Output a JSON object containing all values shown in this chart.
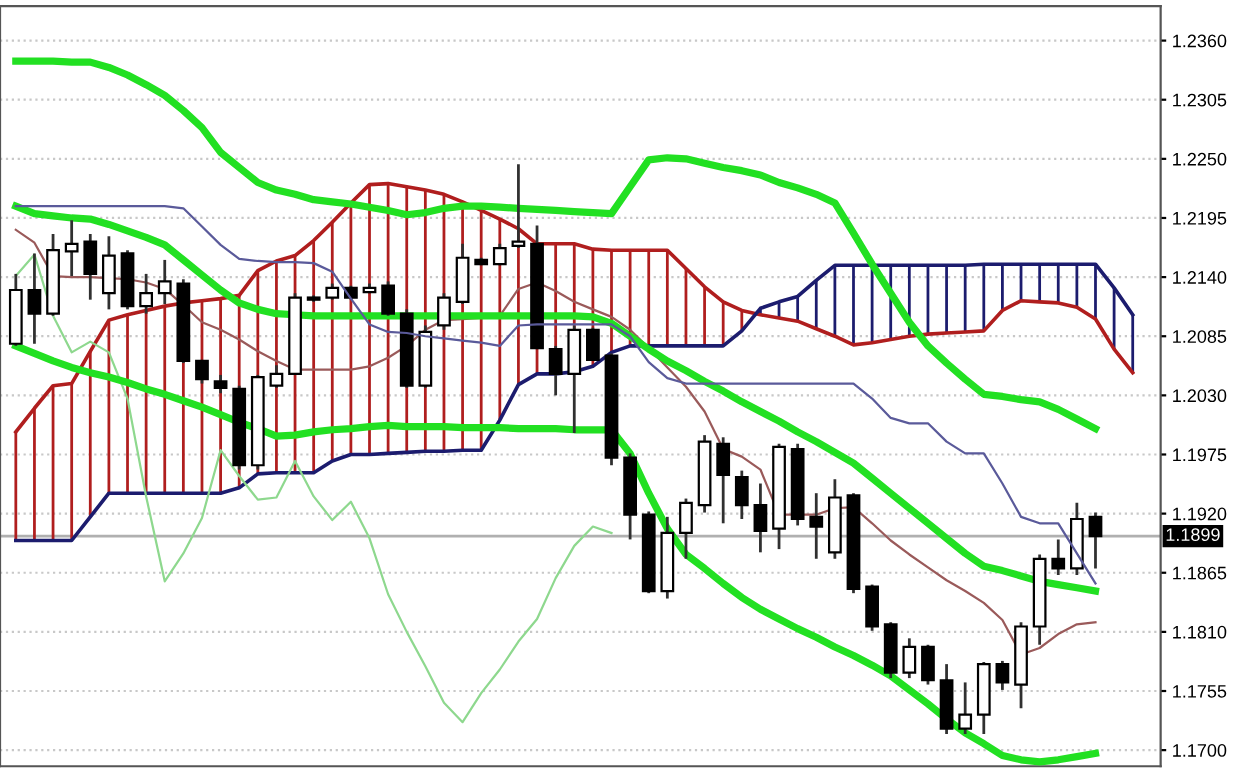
{
  "chart_data": {
    "type": "candlestick",
    "categories": [
      null,
      null,
      null,
      null,
      null,
      null,
      null,
      null,
      null,
      null,
      null,
      null,
      null,
      null,
      null,
      null,
      null,
      null,
      null,
      null,
      null,
      null,
      null,
      null,
      null,
      null,
      null,
      null,
      null,
      null,
      null,
      null,
      null,
      null,
      null,
      null,
      null,
      null,
      null,
      null,
      null,
      null,
      null,
      null,
      null,
      null,
      null,
      null,
      null,
      null,
      null,
      null,
      null,
      null,
      null,
      null,
      null,
      null,
      null,
      null,
      null,
      null
    ],
    "ohlc": [
      [
        1.2078,
        1.2143,
        1.2076,
        1.2128
      ],
      [
        1.2128,
        1.2162,
        1.2078,
        1.2106
      ],
      [
        1.2106,
        1.218,
        1.2104,
        1.2165
      ],
      [
        1.2164,
        1.2193,
        1.2141,
        1.2171
      ],
      [
        1.2173,
        1.218,
        1.2119,
        1.2143
      ],
      [
        1.2125,
        1.2178,
        1.211,
        1.216
      ],
      [
        1.2162,
        1.2165,
        1.211,
        1.2113
      ],
      [
        1.2113,
        1.2143,
        1.2106,
        1.2125
      ],
      [
        1.2125,
        1.2156,
        1.2115,
        1.2136
      ],
      [
        1.2134,
        1.2138,
        1.206,
        1.2062
      ],
      [
        1.2062,
        1.2063,
        1.2041,
        1.2045
      ],
      [
        1.2043,
        1.2049,
        1.2032,
        1.2037
      ],
      [
        1.2036,
        1.2039,
        1.1961,
        1.1965
      ],
      [
        1.1965,
        1.2049,
        1.1961,
        1.2047
      ],
      [
        1.2039,
        1.2058,
        1.2037,
        1.205
      ],
      [
        1.205,
        1.2125,
        1.2049,
        1.2121
      ],
      [
        1.2121,
        1.2123,
        1.2117,
        1.2119
      ],
      [
        1.2121,
        1.2134,
        1.2119,
        1.213
      ],
      [
        1.213,
        1.2132,
        1.2119,
        1.2121
      ],
      [
        1.2126,
        1.2134,
        1.2125,
        1.213
      ],
      [
        1.2132,
        1.2136,
        1.2104,
        1.2106
      ],
      [
        1.2106,
        1.211,
        1.2037,
        1.2039
      ],
      [
        1.2039,
        1.2095,
        1.2037,
        1.2089
      ],
      [
        1.2095,
        1.2125,
        1.2091,
        1.2121
      ],
      [
        1.2117,
        1.2171,
        1.2115,
        1.2158
      ],
      [
        1.2156,
        1.2158,
        1.2151,
        1.2152
      ],
      [
        1.2152,
        1.2171,
        1.2151,
        1.2167
      ],
      [
        1.2169,
        1.2245,
        1.2167,
        1.2173
      ],
      [
        1.2171,
        1.2188,
        1.2073,
        1.2074
      ],
      [
        1.2073,
        1.2076,
        1.203,
        1.205
      ],
      [
        1.205,
        1.2095,
        1.1995,
        1.2091
      ],
      [
        1.2091,
        1.2093,
        1.2062,
        1.2063
      ],
      [
        1.2067,
        1.2069,
        1.1965,
        1.1972
      ],
      [
        1.1972,
        1.1976,
        1.1896,
        1.1919
      ],
      [
        1.1919,
        1.1922,
        1.1846,
        1.1848
      ],
      [
        1.1848,
        1.1917,
        1.1841,
        1.1902
      ],
      [
        1.1902,
        1.1934,
        1.1878,
        1.193
      ],
      [
        1.1928,
        1.1993,
        1.1921,
        1.1987
      ],
      [
        1.1985,
        1.1991,
        1.1911,
        1.1956
      ],
      [
        1.1954,
        1.196,
        1.1915,
        1.1928
      ],
      [
        1.1928,
        1.1948,
        1.1884,
        1.1904
      ],
      [
        1.1906,
        1.1985,
        1.1887,
        1.1982
      ],
      [
        1.198,
        1.1985,
        1.1909,
        1.1915
      ],
      [
        1.1917,
        1.1939,
        1.1878,
        1.1908
      ],
      [
        1.1884,
        1.1952,
        1.1878,
        1.1935
      ],
      [
        1.1937,
        1.1939,
        1.1846,
        1.185
      ],
      [
        1.1852,
        1.1854,
        1.1811,
        1.1815
      ],
      [
        1.1817,
        1.1819,
        1.1767,
        1.1772
      ],
      [
        1.1772,
        1.1804,
        1.1767,
        1.1796
      ],
      [
        1.1796,
        1.1798,
        1.1761,
        1.1765
      ],
      [
        1.1765,
        1.178,
        1.1715,
        1.172
      ],
      [
        1.172,
        1.1763,
        1.1715,
        1.1733
      ],
      [
        1.1733,
        1.1782,
        1.1715,
        1.178
      ],
      [
        1.178,
        1.1783,
        1.1756,
        1.1763
      ],
      [
        1.1761,
        1.1819,
        1.1739,
        1.1815
      ],
      [
        1.1815,
        1.1882,
        1.1798,
        1.1878
      ],
      [
        1.1878,
        1.1896,
        1.1863,
        1.1869
      ],
      [
        1.1869,
        1.193,
        1.1863,
        1.1915
      ],
      [
        1.1917,
        1.1921,
        1.1869,
        1.1899
      ],
      null,
      null,
      null
    ],
    "series": [
      {
        "type": "line",
        "color": "#22e022",
        "values": [
          1.2341,
          1.2341,
          1.2341,
          1.234,
          1.234,
          1.2335,
          1.2328,
          1.2319,
          1.2309,
          1.2295,
          1.2279,
          1.2256,
          1.2242,
          1.2228,
          1.2221,
          1.2217,
          1.2212,
          1.221,
          1.2208,
          1.2205,
          1.2202,
          1.2198,
          1.22,
          1.2204,
          1.2206,
          1.2206,
          1.2205,
          1.2204,
          1.2203,
          1.2202,
          1.2201,
          1.22,
          1.2199,
          1.2224,
          1.2249,
          1.2251,
          1.225,
          1.2246,
          1.2242,
          1.2239,
          1.2235,
          1.2228,
          1.2223,
          1.2217,
          1.2209,
          1.2181,
          1.2152,
          1.2125,
          1.2098,
          1.2076,
          1.206,
          1.2045,
          1.2031,
          1.2029,
          1.2026,
          1.2024,
          1.2017,
          1.2008,
          1.1999,
          null,
          null,
          null
        ]
      },
      {
        "type": "line",
        "color": "#22e022",
        "values": [
          1.2206,
          1.2199,
          1.2197,
          1.2195,
          1.2194,
          1.2189,
          1.2183,
          1.2177,
          1.217,
          1.2156,
          1.2142,
          1.2128,
          1.2116,
          1.211,
          1.2106,
          1.2105,
          1.2104,
          1.2104,
          1.2104,
          1.2104,
          1.2104,
          1.2104,
          1.2104,
          1.2104,
          1.2104,
          1.2104,
          1.2104,
          1.2104,
          1.2104,
          1.2104,
          1.2104,
          1.2103,
          1.2097,
          1.2085,
          1.2073,
          1.2062,
          1.2053,
          1.2043,
          1.2034,
          1.2024,
          1.2015,
          1.2006,
          1.1996,
          1.1987,
          1.1977,
          1.1967,
          1.1953,
          1.1939,
          1.1925,
          1.1911,
          1.1897,
          1.1883,
          1.1871,
          1.1867,
          1.1862,
          1.1857,
          1.1854,
          1.1851,
          1.1848,
          null,
          null,
          null
        ]
      },
      {
        "type": "line",
        "color": "#22e022",
        "values": [
          1.2076,
          1.2069,
          1.2062,
          1.2056,
          1.2051,
          1.2047,
          1.2042,
          1.2036,
          1.2031,
          1.2025,
          1.2019,
          1.2012,
          1.2005,
          1.1999,
          1.1992,
          1.1993,
          1.1996,
          1.1998,
          1.1999,
          1.2001,
          1.2002,
          1.2001,
          1.2001,
          1.2001,
          1.2,
          1.2,
          1.2,
          1.1999,
          1.1999,
          1.1999,
          1.1998,
          1.1998,
          1.1998,
          1.1976,
          1.1939,
          1.1906,
          1.1882,
          1.1869,
          1.1855,
          1.1842,
          1.1831,
          1.1822,
          1.1813,
          1.1805,
          1.1796,
          1.1788,
          1.1779,
          1.1769,
          1.1756,
          1.1743,
          1.1729,
          1.1716,
          1.1706,
          1.1695,
          1.1691,
          1.1689,
          1.1691,
          1.1694,
          1.1697,
          null,
          null,
          null
        ]
      },
      {
        "type": "line",
        "color": "#b01e1e",
        "values": [
          1.1996,
          1.2018,
          1.2039,
          1.2041,
          1.2071,
          1.21,
          1.2105,
          1.2109,
          1.2113,
          1.2116,
          1.2118,
          1.212,
          1.2123,
          1.2146,
          1.2155,
          1.216,
          1.2174,
          1.2191,
          1.2209,
          1.2226,
          1.2227,
          1.2224,
          1.2221,
          1.2217,
          1.221,
          1.2202,
          1.2194,
          1.2185,
          1.2171,
          1.2171,
          1.2171,
          1.2166,
          1.2165,
          1.2165,
          1.2165,
          1.2165,
          1.2148,
          1.2131,
          1.2117,
          1.2109,
          1.2105,
          1.2102,
          1.2099,
          1.2092,
          1.2085,
          1.2077,
          1.2079,
          1.2082,
          1.2085,
          1.2087,
          1.2088,
          1.2089,
          1.209,
          1.2109,
          1.2118,
          1.2117,
          1.2116,
          1.2112,
          1.2101,
          1.2073,
          1.2051,
          null
        ]
      },
      {
        "type": "line",
        "color": "#1c1c6e",
        "values": [
          1.1895,
          1.1895,
          1.1895,
          1.1895,
          1.1917,
          1.1939,
          1.1939,
          1.1939,
          1.1939,
          1.1939,
          1.1939,
          1.1939,
          1.1944,
          1.1957,
          1.1958,
          1.1958,
          1.1958,
          1.1969,
          1.1975,
          1.1975,
          1.1976,
          1.1977,
          1.1978,
          1.1978,
          1.1979,
          1.1979,
          1.2007,
          1.204,
          1.205,
          1.205,
          1.2052,
          1.2057,
          1.207,
          1.2076,
          1.2076,
          1.2076,
          1.2076,
          1.2076,
          1.2076,
          1.209,
          1.2111,
          1.2117,
          1.2122,
          1.2137,
          1.2151,
          1.2151,
          1.2151,
          1.2151,
          1.2151,
          1.2151,
          1.2151,
          1.2151,
          1.2152,
          1.2152,
          1.2152,
          1.2152,
          1.2152,
          1.2152,
          1.2152,
          1.213,
          1.2105,
          null
        ]
      },
      {
        "type": "line",
        "color": "#5a5a9a",
        "values": [
          1.2206,
          1.2206,
          1.2206,
          1.2206,
          1.2206,
          1.2206,
          1.2206,
          1.2206,
          1.2206,
          1.2204,
          1.2187,
          1.217,
          1.2157,
          1.2155,
          1.2154,
          1.2154,
          1.2153,
          1.2145,
          1.212,
          1.2096,
          1.2089,
          1.2088,
          1.2085,
          1.2083,
          1.2081,
          1.2079,
          1.2076,
          1.2095,
          1.2096,
          1.2096,
          1.2096,
          1.2096,
          1.2096,
          1.2085,
          1.2061,
          1.2046,
          1.2041,
          1.2041,
          1.2041,
          1.2041,
          1.2041,
          1.2041,
          1.2041,
          1.2041,
          1.2041,
          1.2041,
          1.2027,
          1.2009,
          1.2004,
          1.2004,
          1.1987,
          1.1976,
          1.1976,
          1.1948,
          1.1917,
          1.1911,
          1.1911,
          1.1883,
          1.1855,
          null,
          null,
          null
        ]
      },
      {
        "type": "line",
        "color": "#9a5a5a",
        "values": [
          1.2184,
          1.2172,
          1.2141,
          1.214,
          1.214,
          1.2139,
          1.2138,
          1.2135,
          1.2129,
          1.2114,
          1.2098,
          1.2091,
          1.2082,
          1.2071,
          1.2062,
          1.2054,
          1.2054,
          1.2054,
          1.2054,
          1.2057,
          1.2065,
          1.2076,
          1.2091,
          1.21,
          1.2101,
          1.2102,
          1.2104,
          1.2129,
          1.2135,
          1.2127,
          1.2117,
          1.211,
          1.2103,
          1.2091,
          1.2074,
          1.2056,
          1.2038,
          1.2015,
          1.198,
          1.1973,
          1.1961,
          1.1919,
          1.1919,
          1.1919,
          1.1925,
          1.1926,
          1.1911,
          1.1895,
          1.1882,
          1.187,
          1.1858,
          1.1848,
          1.1837,
          1.1821,
          1.1789,
          1.1795,
          1.1808,
          1.1817,
          1.1819,
          null,
          null,
          null
        ]
      },
      {
        "type": "line",
        "color": "#8ed88e",
        "values": [
          1.2141,
          1.2161,
          1.2104,
          1.207,
          1.208,
          1.207,
          1.2027,
          1.1936,
          1.1857,
          1.1883,
          1.1916,
          1.1979,
          1.1955,
          1.1933,
          1.1935,
          1.1969,
          1.1936,
          1.1914,
          1.1931,
          1.1897,
          1.1845,
          1.181,
          1.1778,
          1.1744,
          1.1726,
          1.1753,
          1.1775,
          1.1801,
          1.1822,
          1.186,
          1.189,
          1.1908,
          1.1902,
          null,
          null,
          null,
          null,
          null,
          null,
          null,
          null,
          null,
          null,
          null,
          null,
          null,
          null,
          null,
          null,
          null,
          null,
          null,
          null,
          null,
          null,
          null,
          null,
          null,
          null,
          null,
          null,
          null
        ]
      }
    ],
    "ylim": [
      1.1685,
      1.2392
    ],
    "yticks": [
      {
        "value": 1.236,
        "label": "1.2360"
      },
      {
        "value": 1.2305,
        "label": "1.2305"
      },
      {
        "value": 1.225,
        "label": "1.2250"
      },
      {
        "value": 1.2195,
        "label": "1.2195"
      },
      {
        "value": 1.214,
        "label": "1.2140"
      },
      {
        "value": 1.2085,
        "label": "1.2085"
      },
      {
        "value": 1.203,
        "label": "1.2030"
      },
      {
        "value": 1.1975,
        "label": "1.1975"
      },
      {
        "value": 1.192,
        "label": "1.1920"
      },
      {
        "value": 1.1865,
        "label": "1.1865"
      },
      {
        "value": 1.181,
        "label": "1.1810"
      },
      {
        "value": 1.1755,
        "label": "1.1755"
      },
      {
        "value": 1.17,
        "label": "1.1700"
      }
    ],
    "ref_lines": [
      {
        "axis": "y",
        "value": 1.1899,
        "label": "1.1899",
        "color": "#b0b0b0"
      }
    ],
    "grid": "y",
    "tick_labels": "y"
  }
}
